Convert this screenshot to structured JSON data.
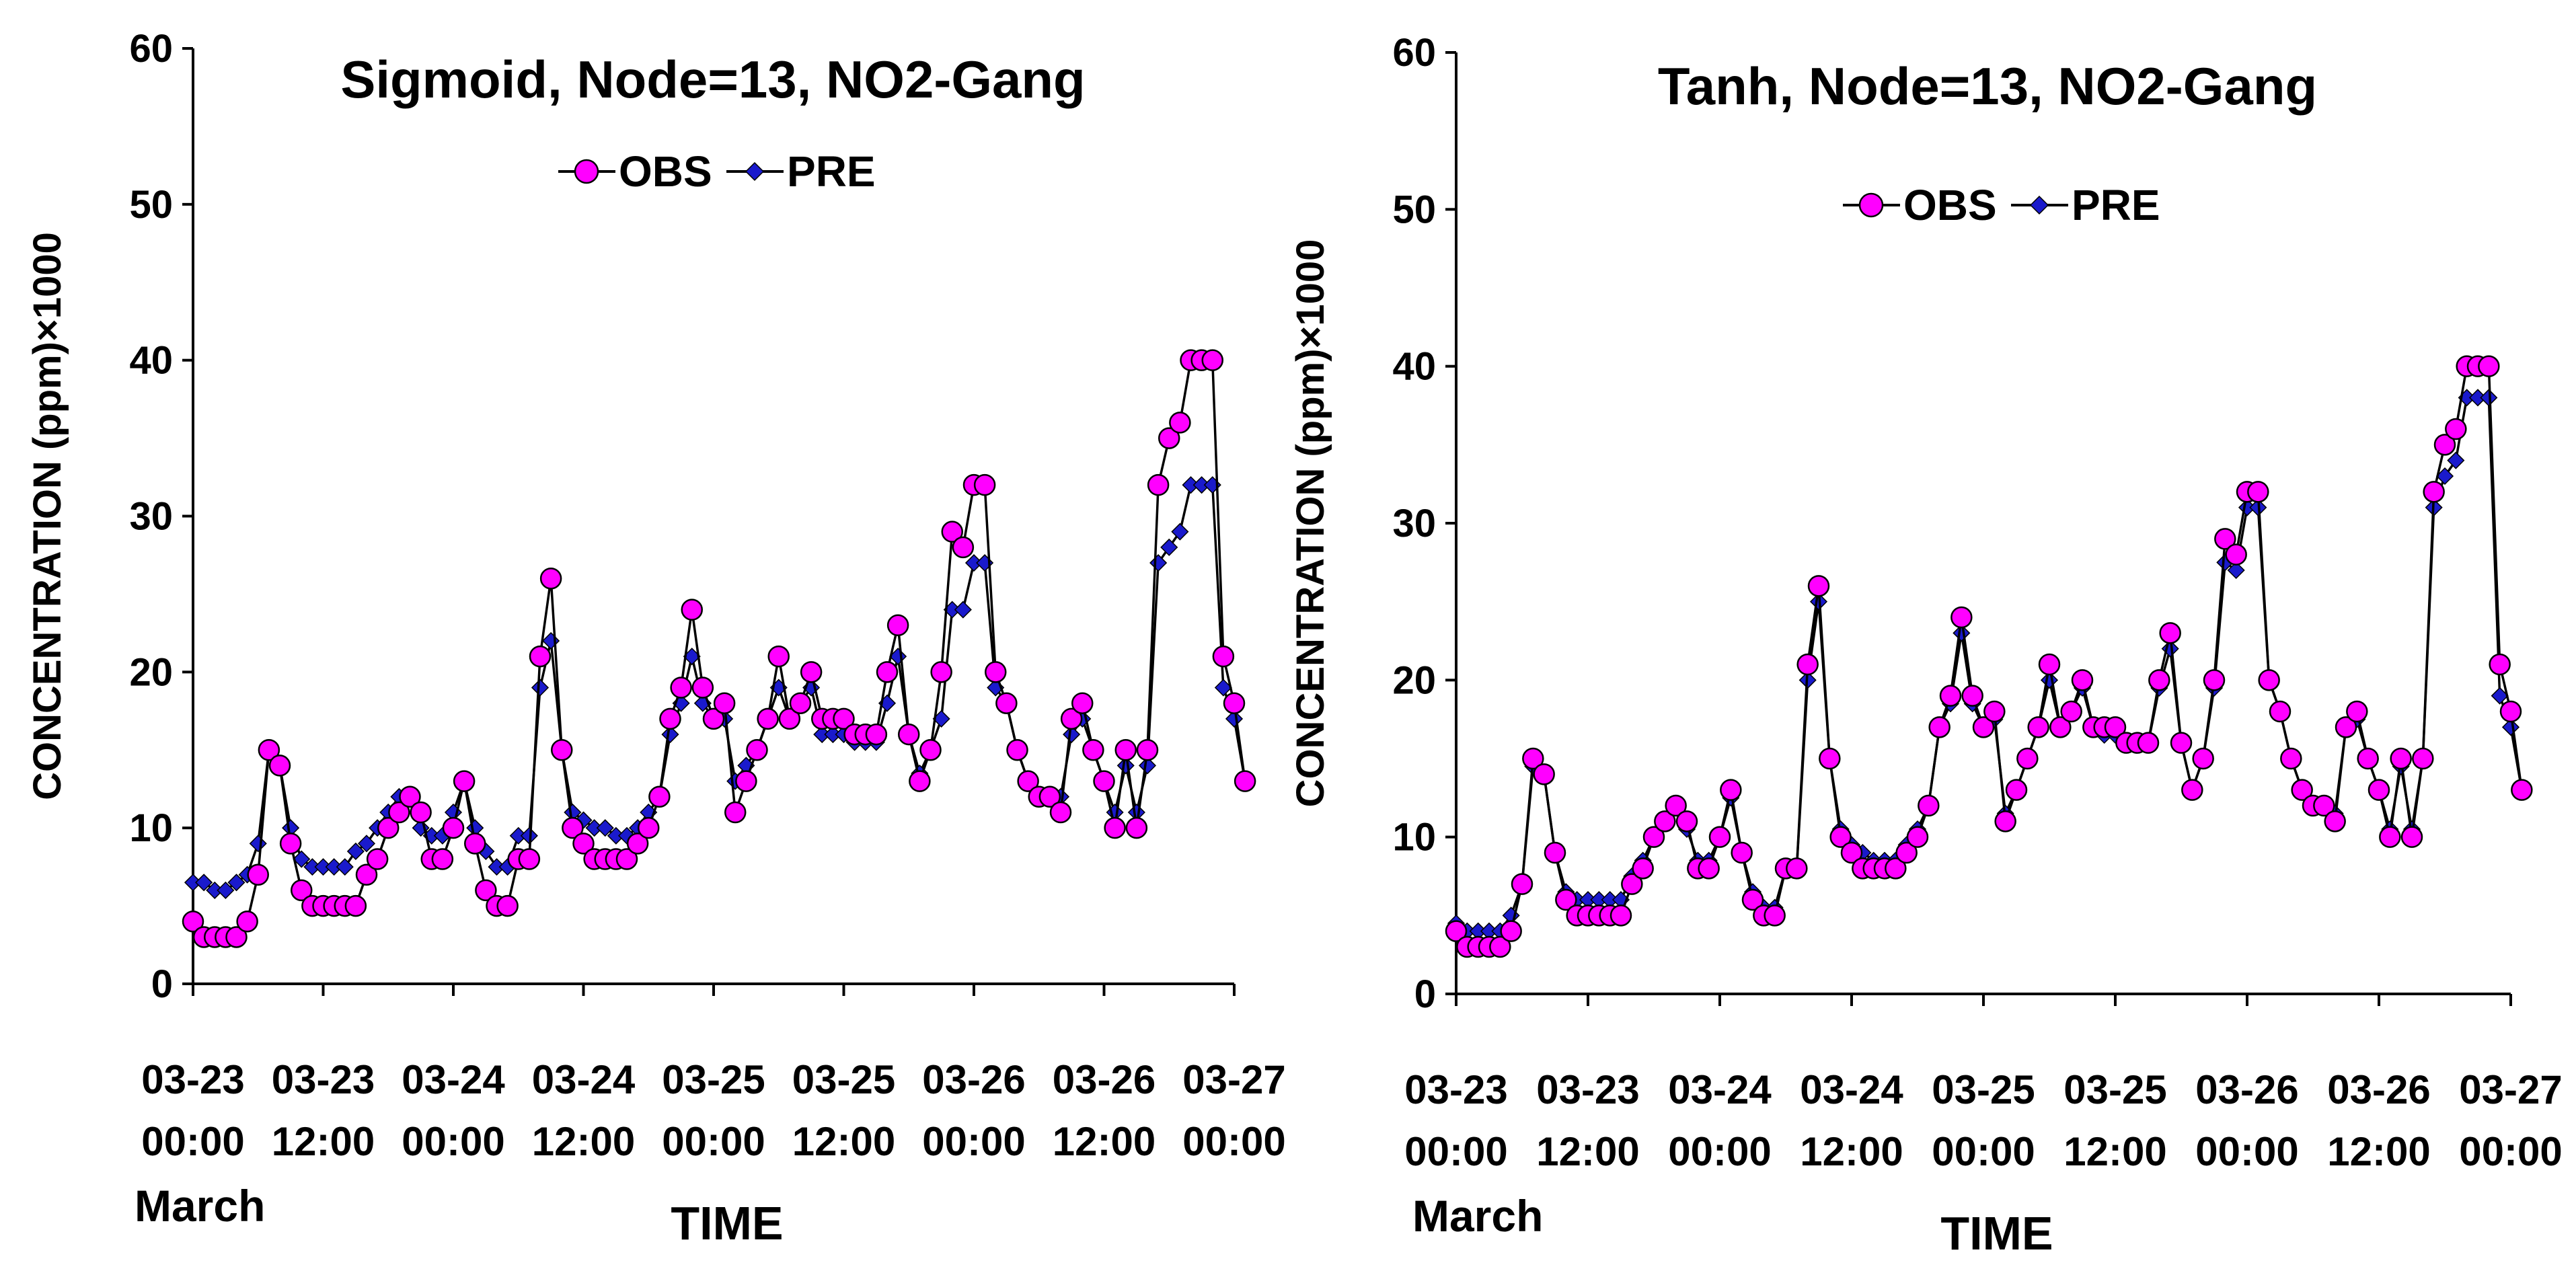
{
  "chart_data": [
    {
      "type": "line",
      "title": "Sigmoid, Node=13, NO2-Gang",
      "xlabel": "TIME",
      "ylabel": "CONCENTRATION (ppm)×1000",
      "xcaption": "March",
      "ylim": [
        0,
        60
      ],
      "yticks": [
        0,
        10,
        20,
        30,
        40,
        50,
        60
      ],
      "xlim": [
        0,
        96
      ],
      "xticks": [
        {
          "date": "03-23",
          "time": "00:00"
        },
        {
          "date": "03-23",
          "time": "12:00"
        },
        {
          "date": "03-24",
          "time": "00:00"
        },
        {
          "date": "03-24",
          "time": "12:00"
        },
        {
          "date": "03-25",
          "time": "00:00"
        },
        {
          "date": "03-25",
          "time": "12:00"
        },
        {
          "date": "03-26",
          "time": "00:00"
        },
        {
          "date": "03-26",
          "time": "12:00"
        },
        {
          "date": "03-27",
          "time": "00:00"
        }
      ],
      "legend": [
        "OBS",
        "PRE"
      ],
      "series": [
        {
          "name": "OBS",
          "color": "#ff00ff",
          "values": [
            4,
            3,
            3,
            3,
            3,
            4,
            7,
            15,
            14,
            9,
            6,
            5,
            5,
            5,
            5,
            5,
            7,
            8,
            10,
            11,
            12,
            11,
            8,
            8,
            10,
            13,
            9,
            6,
            5,
            5,
            8,
            8,
            21,
            26,
            15,
            10,
            9,
            8,
            8,
            8,
            8,
            9,
            10,
            12,
            17,
            19,
            24,
            19,
            17,
            18,
            11,
            13,
            15,
            17,
            21,
            17,
            18,
            20,
            17,
            17,
            17,
            16,
            16,
            16,
            20,
            23,
            16,
            13,
            15,
            20,
            29,
            28,
            32,
            32,
            20,
            18,
            15,
            13,
            12,
            12,
            11,
            17,
            18,
            15,
            13,
            10,
            15,
            10,
            15,
            32,
            35,
            36,
            40,
            40,
            40,
            21,
            18,
            13
          ]
        },
        {
          "name": "PRE",
          "color": "#1a1acc",
          "values": [
            6.5,
            6.5,
            6,
            6,
            6.5,
            7,
            9,
            15,
            14,
            10,
            8,
            7.5,
            7.5,
            7.5,
            7.5,
            8.5,
            9,
            10,
            11,
            12,
            12,
            10,
            9.5,
            9.5,
            11,
            13,
            10,
            8.5,
            7.5,
            7.5,
            9.5,
            9.5,
            19,
            22,
            15,
            11,
            10.5,
            10,
            10,
            9.5,
            9.5,
            10,
            11,
            12,
            16,
            18,
            21,
            18,
            17,
            17,
            13,
            14,
            15,
            17,
            19,
            17,
            18,
            19,
            16,
            16,
            16,
            15.5,
            15.5,
            15.5,
            18,
            21,
            16,
            13.5,
            15,
            17,
            24,
            24,
            27,
            27,
            19,
            18,
            15,
            13,
            12,
            12,
            12,
            16,
            17,
            15,
            13,
            11,
            14,
            11,
            14,
            27,
            28,
            29,
            32,
            32,
            32,
            19,
            17,
            13
          ]
        }
      ]
    },
    {
      "type": "line",
      "title": "Tanh, Node=13, NO2-Gang",
      "xlabel": "TIME",
      "ylabel": "CONCENTRATION (ppm)×1000",
      "xcaption": "March",
      "ylim": [
        0,
        60
      ],
      "yticks": [
        0,
        10,
        20,
        30,
        40,
        50,
        60
      ],
      "xlim": [
        0,
        96
      ],
      "xticks": [
        {
          "date": "03-23",
          "time": "00:00"
        },
        {
          "date": "03-23",
          "time": "12:00"
        },
        {
          "date": "03-24",
          "time": "00:00"
        },
        {
          "date": "03-24",
          "time": "12:00"
        },
        {
          "date": "03-25",
          "time": "00:00"
        },
        {
          "date": "03-25",
          "time": "12:00"
        },
        {
          "date": "03-26",
          "time": "00:00"
        },
        {
          "date": "03-26",
          "time": "12:00"
        },
        {
          "date": "03-27",
          "time": "00:00"
        }
      ],
      "legend": [
        "OBS",
        "PRE"
      ],
      "series": [
        {
          "name": "OBS",
          "color": "#ff00ff",
          "values": [
            4,
            3,
            3,
            3,
            3,
            4,
            7,
            15,
            14,
            9,
            6,
            5,
            5,
            5,
            5,
            5,
            7,
            8,
            10,
            11,
            12,
            11,
            8,
            8,
            10,
            13,
            9,
            6,
            5,
            5,
            8,
            8,
            21,
            26,
            15,
            10,
            9,
            8,
            8,
            8,
            8,
            9,
            10,
            12,
            17,
            19,
            24,
            19,
            17,
            18,
            11,
            13,
            15,
            17,
            21,
            17,
            18,
            20,
            17,
            17,
            17,
            16,
            16,
            16,
            20,
            23,
            16,
            13,
            15,
            20,
            29,
            28,
            32,
            32,
            20,
            18,
            15,
            13,
            12,
            12,
            11,
            17,
            18,
            15,
            13,
            10,
            15,
            10,
            15,
            32,
            35,
            36,
            40,
            40,
            40,
            21,
            18,
            13
          ]
        },
        {
          "name": "PRE",
          "color": "#1a1acc",
          "values": [
            4.5,
            4,
            4,
            4,
            4,
            5,
            7,
            14.5,
            14,
            9,
            6.5,
            6,
            6,
            6,
            6,
            6,
            7.5,
            8.5,
            10,
            11,
            12,
            10.5,
            8.5,
            8.5,
            10,
            12.5,
            9,
            6.5,
            5.5,
            5.5,
            8,
            8,
            20,
            25,
            15,
            10.5,
            9.5,
            9,
            8.5,
            8.5,
            8.5,
            9.5,
            10.5,
            12,
            17,
            18.5,
            23,
            18.5,
            17,
            17.5,
            11.5,
            13,
            15,
            17,
            20,
            17,
            18,
            19.5,
            17,
            16.5,
            16.5,
            16,
            16,
            16,
            19.5,
            22,
            16,
            13,
            15,
            19.5,
            27.5,
            27,
            31,
            31,
            20,
            18,
            15,
            13,
            12,
            12,
            11.5,
            17,
            17.5,
            15,
            13,
            10.5,
            14.5,
            10.5,
            15,
            31,
            33,
            34,
            38,
            38,
            38,
            19,
            17,
            13
          ]
        }
      ]
    }
  ]
}
